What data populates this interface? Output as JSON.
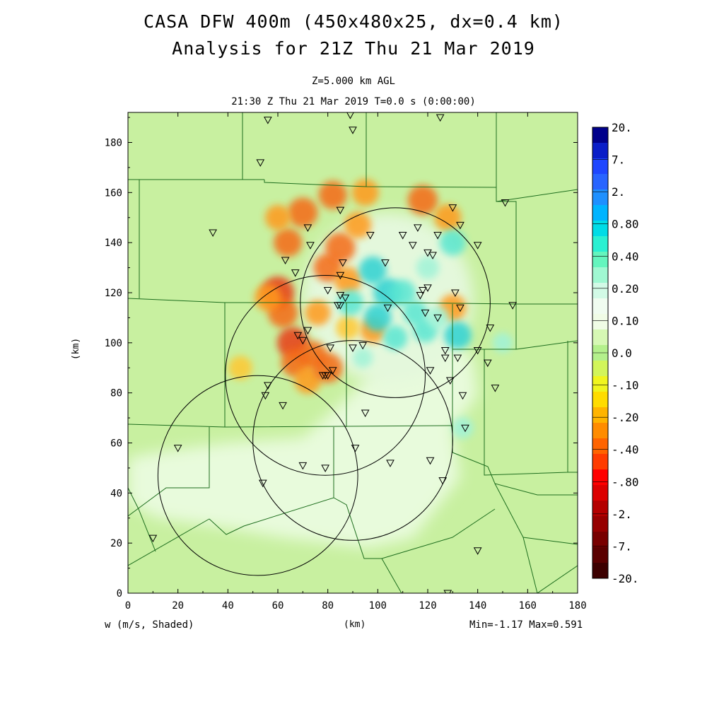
{
  "title": {
    "line1": "CASA DFW 400m (450x480x25, dx=0.4 km)",
    "line2": "Analysis for 21Z Thu 21 Mar 2019"
  },
  "subtitle": {
    "level": "Z=5.000 km AGL",
    "time": "21:30 Z Thu 21 Mar 2019    T=0.0 s (0:00:00)"
  },
  "footer": {
    "variable": "w (m/s, Shaded)",
    "xunit": "(km)",
    "minmax": "Min=-1.17 Max=0.591"
  },
  "colors": {
    "background_field": "#c8f0a0",
    "light_region": "#e8fbdc",
    "frame": "#000000"
  },
  "chart_data": {
    "type": "heatmap",
    "variable": "w (m/s, Shaded)",
    "ylabel": "(km)",
    "xlabel": "(km)",
    "xlim": [
      0,
      180
    ],
    "ylim": [
      0,
      192
    ],
    "xticks": [
      0,
      20,
      40,
      60,
      80,
      100,
      120,
      140,
      160,
      180
    ],
    "yticks": [
      0,
      20,
      40,
      60,
      80,
      100,
      120,
      140,
      160,
      180
    ],
    "xtick_labels": [
      "0",
      "20",
      "40",
      "60",
      "80",
      "100",
      "120",
      "140",
      "160",
      "180"
    ],
    "ytick_labels": [
      "0",
      "20",
      "40",
      "60",
      "80",
      "100",
      "120",
      "140",
      "160",
      "180"
    ],
    "min": -1.17,
    "max": 0.591,
    "colorbar": {
      "labels": [
        "20.",
        "7.",
        "2.",
        "0.80",
        "0.40",
        "0.20",
        "0.10",
        "0.0",
        "-.10",
        "-.20",
        "-.40",
        "-.80",
        "-2.",
        "-7.",
        "-20."
      ],
      "colors": [
        "#00008b",
        "#0a1ec8",
        "#1e46ff",
        "#2864ff",
        "#1e90ff",
        "#00b4ff",
        "#00dce6",
        "#2af0d2",
        "#64f5be",
        "#a0f8d2",
        "#d2fae6",
        "#f0fcf0",
        "#f0fce6",
        "#d6f8b4",
        "#b4f08c",
        "#d2f55a",
        "#f0f51e",
        "#ffdc00",
        "#ffb400",
        "#ff8c00",
        "#ff6400",
        "#ff3c00",
        "#ff0000",
        "#dc0000",
        "#b40000",
        "#960000",
        "#780000",
        "#5a0000",
        "#3c0000"
      ]
    },
    "radar_rings": [
      {
        "center": [
          107,
          116
        ],
        "radius": 38
      },
      {
        "center": [
          79,
          87
        ],
        "radius": 40
      },
      {
        "center": [
          52,
          47
        ],
        "radius": 40
      },
      {
        "center": [
          90,
          61
        ],
        "radius": 40
      }
    ],
    "stations": [
      [
        56,
        189
      ],
      [
        89,
        191
      ],
      [
        90,
        185
      ],
      [
        125,
        190
      ],
      [
        53,
        172
      ],
      [
        34,
        144
      ],
      [
        151,
        156
      ],
      [
        130,
        154
      ],
      [
        85,
        153
      ],
      [
        72,
        146
      ],
      [
        133,
        147
      ],
      [
        116,
        146
      ],
      [
        97,
        143
      ],
      [
        110,
        143
      ],
      [
        124,
        143
      ],
      [
        73,
        139
      ],
      [
        114,
        139
      ],
      [
        140,
        139
      ],
      [
        120,
        136
      ],
      [
        122,
        135
      ],
      [
        63,
        133
      ],
      [
        86,
        132
      ],
      [
        103,
        132
      ],
      [
        67,
        128
      ],
      [
        85,
        127
      ],
      [
        80,
        121
      ],
      [
        120,
        122
      ],
      [
        118,
        121
      ],
      [
        117,
        119
      ],
      [
        131,
        120
      ],
      [
        85,
        119
      ],
      [
        87,
        118
      ],
      [
        84,
        115
      ],
      [
        85,
        115
      ],
      [
        104,
        114
      ],
      [
        133,
        114
      ],
      [
        154,
        115
      ],
      [
        119,
        112
      ],
      [
        124,
        110
      ],
      [
        68,
        103
      ],
      [
        72,
        105
      ],
      [
        70,
        101
      ],
      [
        145,
        106
      ],
      [
        94,
        99
      ],
      [
        90,
        98
      ],
      [
        81,
        98
      ],
      [
        127,
        97
      ],
      [
        127,
        94
      ],
      [
        132,
        94
      ],
      [
        140,
        97
      ],
      [
        144,
        92
      ],
      [
        121,
        89
      ],
      [
        82,
        89
      ],
      [
        80,
        87
      ],
      [
        79,
        87
      ],
      [
        78,
        87
      ],
      [
        129,
        85
      ],
      [
        147,
        82
      ],
      [
        56,
        83
      ],
      [
        55,
        79
      ],
      [
        134,
        79
      ],
      [
        62,
        75
      ],
      [
        95,
        72
      ],
      [
        135,
        66
      ],
      [
        91,
        58
      ],
      [
        20,
        58
      ],
      [
        121,
        53
      ],
      [
        105,
        52
      ],
      [
        70,
        51
      ],
      [
        79,
        50
      ],
      [
        54,
        44
      ],
      [
        126,
        45
      ],
      [
        10,
        22
      ],
      [
        140,
        17
      ],
      [
        128,
        0
      ]
    ],
    "updraft_cells": [
      [
        100,
        110,
        1.0
      ],
      [
        104,
        120,
        1.1
      ],
      [
        110,
        120,
        0.9
      ],
      [
        119,
        105,
        0.8
      ],
      [
        132,
        103,
        1.0
      ],
      [
        115,
        112,
        0.8
      ],
      [
        124,
        110,
        0.7
      ],
      [
        130,
        140,
        0.9
      ],
      [
        89,
        116,
        0.9
      ],
      [
        98,
        129,
        1.0
      ],
      [
        107,
        102,
        0.8
      ],
      [
        120,
        130,
        0.7
      ],
      [
        134,
        66,
        0.6
      ],
      [
        150,
        100,
        0.5
      ],
      [
        94,
        94,
        0.5
      ]
    ],
    "downdraft_cells": [
      [
        60,
        120,
        1.17
      ],
      [
        62,
        112,
        1.0
      ],
      [
        66,
        100,
        1.1
      ],
      [
        67,
        92,
        0.9
      ],
      [
        74,
        95,
        0.9
      ],
      [
        56,
        118,
        0.8
      ],
      [
        64,
        140,
        0.9
      ],
      [
        70,
        152,
        1.0
      ],
      [
        82,
        159,
        0.9
      ],
      [
        95,
        160,
        0.8
      ],
      [
        118,
        157,
        1.0
      ],
      [
        128,
        150,
        0.8
      ],
      [
        80,
        130,
        0.9
      ],
      [
        85,
        138,
        1.0
      ],
      [
        92,
        147,
        0.8
      ],
      [
        76,
        112,
        0.7
      ],
      [
        72,
        85,
        0.8
      ],
      [
        80,
        90,
        1.0
      ],
      [
        98,
        105,
        0.7
      ],
      [
        88,
        106,
        0.6
      ],
      [
        60,
        150,
        0.7
      ],
      [
        130,
        114,
        0.8
      ],
      [
        45,
        90,
        0.6
      ],
      [
        88,
        125,
        0.8
      ]
    ],
    "light_region": [
      [
        0,
        36
      ],
      [
        12,
        30
      ],
      [
        40,
        26
      ],
      [
        63,
        22
      ],
      [
        80,
        20
      ],
      [
        96,
        18
      ],
      [
        114,
        22
      ],
      [
        133,
        46
      ],
      [
        130,
        66
      ],
      [
        140,
        79
      ],
      [
        138,
        94
      ],
      [
        129,
        102
      ],
      [
        110,
        102
      ],
      [
        90,
        80
      ],
      [
        70,
        62
      ],
      [
        40,
        60
      ],
      [
        10,
        56
      ],
      [
        0,
        54
      ]
    ]
  }
}
